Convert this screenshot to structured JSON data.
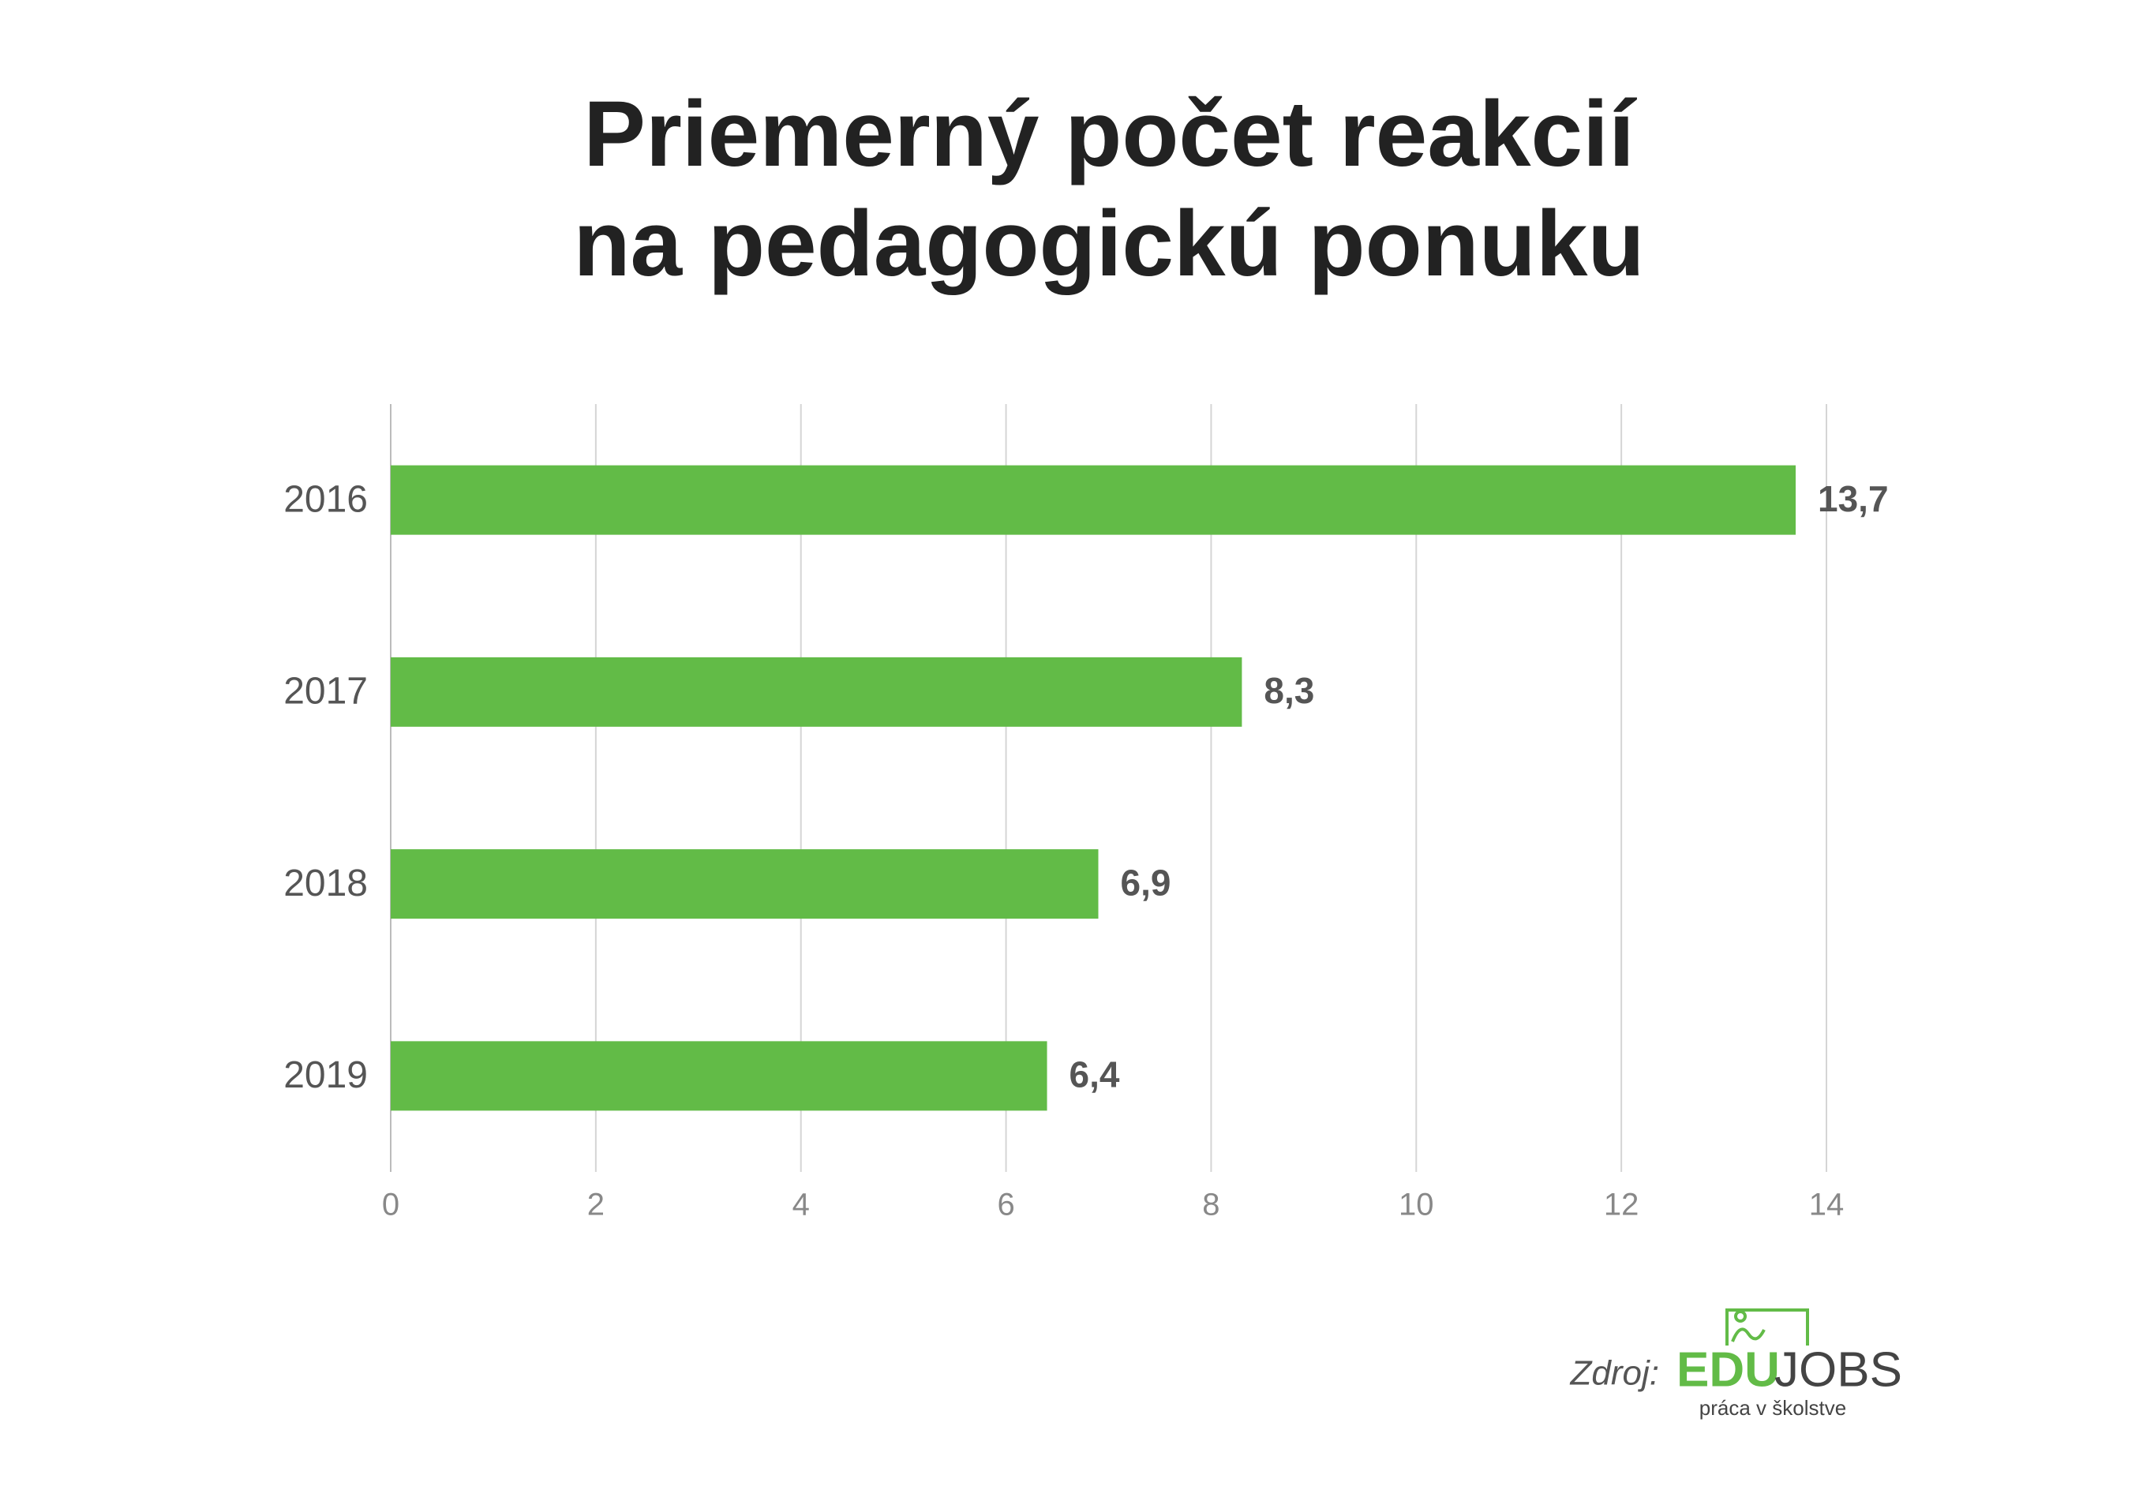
{
  "chart_data": {
    "type": "bar",
    "orientation": "horizontal",
    "title": [
      "Priemerný počet reakcií",
      "na pedagogickú ponuku"
    ],
    "categories": [
      "2016",
      "2017",
      "2018",
      "2019"
    ],
    "values": [
      13.7,
      8.3,
      6.9,
      6.4
    ],
    "value_labels": [
      "13,7",
      "8,3",
      "6,9",
      "6,4"
    ],
    "color": "#62bb47",
    "xlim": [
      0,
      14
    ],
    "xticks": [
      0,
      2,
      4,
      6,
      8,
      10,
      12,
      14
    ],
    "grid": true,
    "source_label": "Zdroj:",
    "logo": {
      "edu": "EDU",
      "jobs": "JOBS",
      "tagline": "práca v školstve"
    }
  }
}
